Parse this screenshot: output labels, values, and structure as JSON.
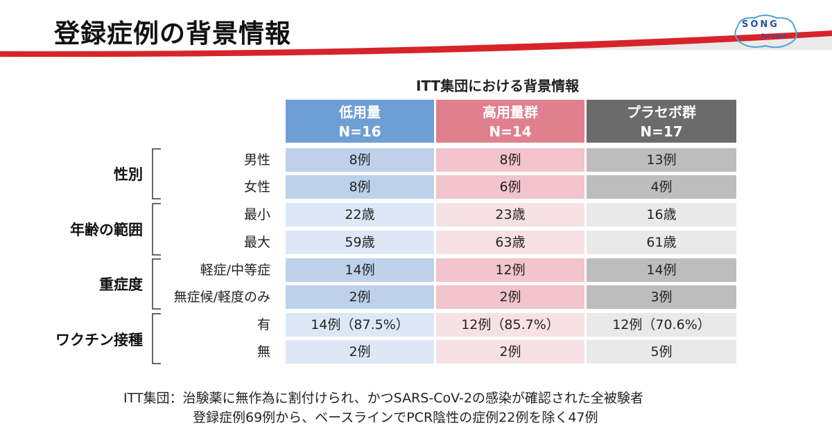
{
  "slide": {
    "title": "登録症例の背景情報",
    "logo_line1": "SONG",
    "logo_line2": "for you!",
    "subtitle": "ITT集団における背景情報"
  },
  "columns": [
    {
      "name": "低用量",
      "n": "N=16",
      "header_color": "#6e9fd4",
      "dark_color": "#bdd2ea",
      "light_color": "#dce8f5"
    },
    {
      "name": "高用量群",
      "n": "N=14",
      "header_color": "#e0808f",
      "dark_color": "#f2c4cb",
      "light_color": "#f8e1e5"
    },
    {
      "name": "プラセボ群",
      "n": "N=17",
      "header_color": "#6b6b6b",
      "dark_color": "#bdbdbd",
      "light_color": "#e9e9e9"
    }
  ],
  "groups": [
    {
      "label": "性別",
      "rows": [
        {
          "label": "男性",
          "values": [
            "8例",
            "8例",
            "13例"
          ]
        },
        {
          "label": "女性",
          "values": [
            "8例",
            "6例",
            "4例"
          ]
        }
      ]
    },
    {
      "label": "年齢の範囲",
      "rows": [
        {
          "label": "最小",
          "values": [
            "22歳",
            "23歳",
            "16歳"
          ]
        },
        {
          "label": "最大",
          "values": [
            "59歳",
            "63歳",
            "61歳"
          ]
        }
      ]
    },
    {
      "label": "重症度",
      "rows": [
        {
          "label": "軽症/中等症",
          "values": [
            "14例",
            "12例",
            "14例"
          ]
        },
        {
          "label": "無症候/軽度のみ",
          "values": [
            "2例",
            "2例",
            "3例"
          ]
        }
      ]
    },
    {
      "label": "ワクチン接種",
      "rows": [
        {
          "label": "有",
          "values": [
            "14例（87.5%）",
            "12例（85.7%）",
            "12例（70.6%）"
          ]
        },
        {
          "label": "無",
          "values": [
            "2例",
            "2例",
            "5例"
          ]
        }
      ]
    }
  ],
  "footnote": {
    "line1": "ITT集団：治験薬に無作為に割付けられ、かつSARS-CoV-2の感染が確認された全被験者",
    "line2": "登録症例69例から、ベースラインでPCR陰性の症例22例を除く47例"
  }
}
